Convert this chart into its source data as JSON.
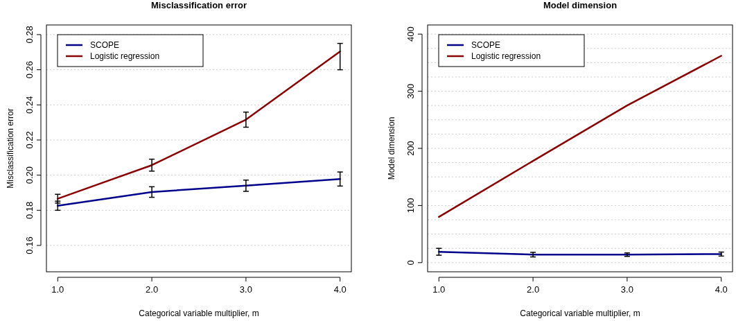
{
  "chart_data": [
    {
      "type": "line",
      "title": "Misclassification error",
      "xlabel": "Categorical variable multiplier, m",
      "ylabel": "Misclassification error",
      "x": [
        1,
        2,
        3,
        4
      ],
      "xlim": [
        0.88,
        4.12
      ],
      "xticks": [
        {
          "value": 1,
          "label": "1.0"
        },
        {
          "value": 2,
          "label": "2.0"
        },
        {
          "value": 3,
          "label": "3.0"
        },
        {
          "value": 4,
          "label": "4.0"
        }
      ],
      "ylim": [
        0.145,
        0.2855
      ],
      "yticks": [
        0.16,
        0.18,
        {
          "value": 0.2,
          "label": "0.20"
        },
        0.22,
        0.24,
        0.26,
        0.28
      ],
      "grid": "y",
      "legend": "top left",
      "marker": "none",
      "line_style": "solid",
      "series": [
        {
          "name": "SCOPE",
          "color": "#00008b",
          "values": [
            0.1826,
            0.1904,
            0.194,
            0.1978
          ],
          "errors": [
            0.0026,
            0.003,
            0.0032,
            0.004
          ]
        },
        {
          "name": "Logistic regression",
          "color": "#8b0000",
          "values": [
            0.1866,
            0.2057,
            0.2316,
            0.2704
          ],
          "errors": [
            0.0025,
            0.0034,
            0.0043,
            [
              0.26,
              0.275
            ]
          ]
        }
      ]
    },
    {
      "type": "line",
      "title": "Model dimension",
      "xlabel": "Categorical variable multiplier, m",
      "ylabel": "Model dimension",
      "x": [
        1,
        2,
        3,
        4
      ],
      "xlim": [
        0.88,
        4.12
      ],
      "xticks": [
        {
          "value": 1,
          "label": "1.0"
        },
        {
          "value": 2,
          "label": "2.0"
        },
        {
          "value": 3,
          "label": "3.0"
        },
        {
          "value": 4,
          "label": "4.0"
        }
      ],
      "ylim": [
        -16,
        416
      ],
      "yticks": [
        0,
        {
          "value": 25,
          "label": null
        },
        {
          "value": 50,
          "label": null
        },
        {
          "value": 75,
          "label": null
        },
        100,
        {
          "value": 125,
          "label": null
        },
        {
          "value": 150,
          "label": null
        },
        {
          "value": 175,
          "label": null
        },
        200,
        {
          "value": 225,
          "label": null
        },
        {
          "value": 250,
          "label": null
        },
        {
          "value": 275,
          "label": null
        },
        300,
        {
          "value": 325,
          "label": null
        },
        {
          "value": 350,
          "label": null
        },
        {
          "value": 375,
          "label": null
        },
        400
      ],
      "grid": "y",
      "legend": "top left",
      "marker": "none",
      "line_style": "solid",
      "series": [
        {
          "name": "SCOPE",
          "color": "#00008b",
          "values": [
            19,
            14,
            14,
            15
          ],
          "errors": [
            6,
            4,
            3,
            3.5
          ]
        },
        {
          "name": "Logistic regression",
          "color": "#8b0000",
          "values": [
            80,
            178,
            275,
            362
          ]
        }
      ]
    }
  ]
}
